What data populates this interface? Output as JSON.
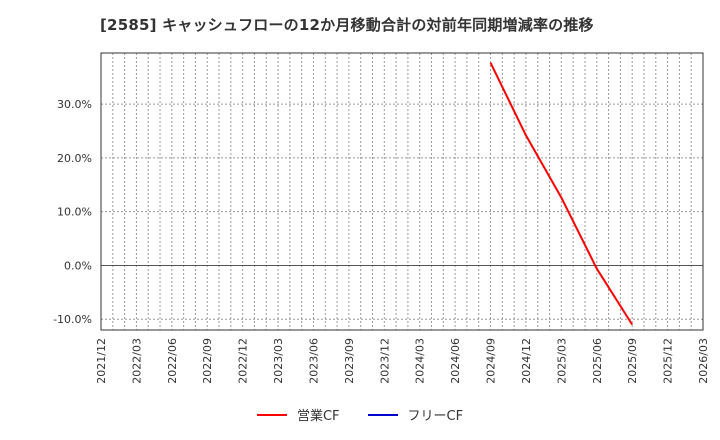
{
  "title": "[2585]  キャッシュフローの12か月移動合計の対前年同期増減率の推移",
  "legend": [
    {
      "label": "営業CF",
      "color": "#ff0000"
    },
    {
      "label": "フリーCF",
      "color": "#0000cc"
    }
  ],
  "chart_data": {
    "type": "line",
    "title": "[2585]  キャッシュフローの12か月移動合計の対前年同期増減率の推移",
    "xlabel": "",
    "ylabel": "",
    "x_ticks": [
      "2021/12",
      "2022/03",
      "2022/06",
      "2022/09",
      "2022/12",
      "2023/03",
      "2023/06",
      "2023/09",
      "2023/12",
      "2024/03",
      "2024/06",
      "2024/09",
      "2024/12",
      "2025/03",
      "2025/06",
      "2025/09",
      "2025/12",
      "2026/03"
    ],
    "y_ticks": [
      "30.0%",
      "20.0%",
      "10.0%",
      "0.0%",
      "-10.0%"
    ],
    "ylim": [
      -12.0,
      39.5
    ],
    "grid": true,
    "legend_position": "bottom",
    "series": [
      {
        "name": "営業CF",
        "color": "#ff0000",
        "x": [
          "2024/09",
          "2024/12",
          "2025/03",
          "2025/06",
          "2025/09"
        ],
        "values": [
          37.7,
          24.2,
          12.6,
          -0.6,
          -11.0
        ]
      },
      {
        "name": "フリーCF",
        "color": "#0000cc",
        "x": [],
        "values": []
      }
    ]
  }
}
